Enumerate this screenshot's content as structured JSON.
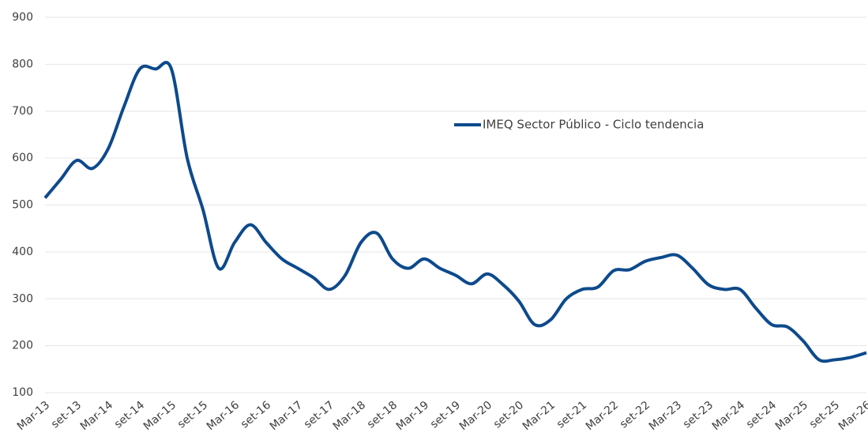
{
  "chart_data": {
    "type": "line",
    "categories": [
      "Mar-13",
      null,
      "set-13",
      null,
      "Mar-14",
      null,
      "set-14",
      null,
      "Mar-15",
      null,
      "set-15",
      null,
      "Mar-16",
      null,
      "set-16",
      null,
      "Mar-17",
      null,
      "set-17",
      null,
      "Mar-18",
      null,
      "set-18",
      null,
      "Mar-19",
      null,
      "set-19",
      null,
      "Mar-20",
      null,
      "set-20",
      null,
      "Mar-21",
      null,
      "set-21",
      null,
      "Mar-22",
      null,
      "set-22",
      null,
      "Mar-23",
      null,
      "set-23",
      null,
      "Mar-24",
      null,
      "set-24",
      null,
      "Mar-25",
      null,
      "set-25",
      null,
      "Mar-26"
    ],
    "series": [
      {
        "name": "IMEQ Sector Público - Ciclo tendencia",
        "color": "#0d4a8c",
        "values": [
          515,
          555,
          595,
          578,
          620,
          710,
          790,
          790,
          790,
          600,
          490,
          365,
          420,
          458,
          420,
          385,
          365,
          345,
          320,
          350,
          420,
          440,
          385,
          365,
          385,
          365,
          350,
          332,
          353,
          330,
          295,
          245,
          255,
          300,
          320,
          325,
          360,
          362,
          380,
          388,
          393,
          365,
          330,
          320,
          320,
          280,
          245,
          240,
          210,
          170,
          170,
          175,
          185
        ]
      }
    ],
    "ylim": [
      100,
      900
    ],
    "yticks": [
      100,
      200,
      300,
      400,
      500,
      600,
      700,
      800,
      900
    ],
    "grid": true,
    "legend": "top-right"
  }
}
